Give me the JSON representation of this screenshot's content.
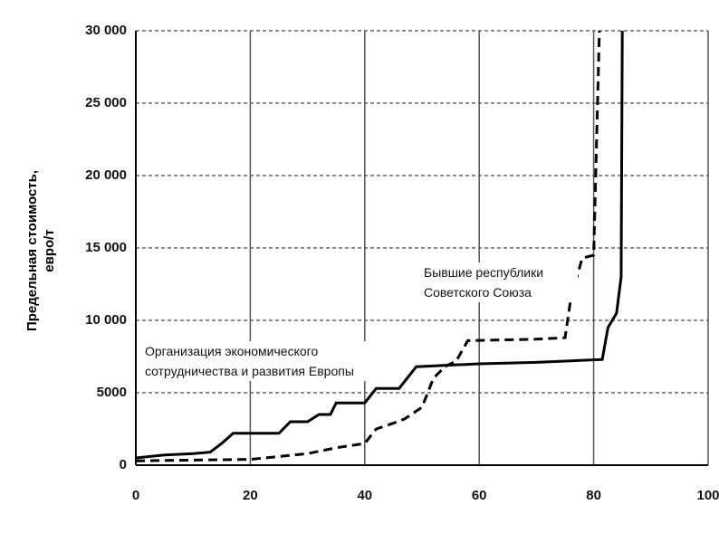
{
  "chart_data": {
    "type": "line",
    "y_label": "Предельная стоимость, евро/т",
    "xlim": [
      0,
      100
    ],
    "xticks": [
      0,
      20,
      40,
      60,
      80,
      100
    ],
    "ylim": [
      0,
      30000
    ],
    "yticks": [
      0,
      {
        "value": 5000,
        "label": "5000"
      },
      {
        "value": 10000,
        "label": "10 000"
      },
      {
        "value": 15000,
        "label": "15 000"
      },
      {
        "value": 20000,
        "label": "20 000"
      },
      {
        "value": 25000,
        "label": "25 000"
      },
      {
        "value": 30000,
        "label": "30 000"
      }
    ],
    "grid": true,
    "series": [
      {
        "name": "Организация экономического сотрудничества и развития Европы",
        "color": "#000000",
        "line_style": "solid",
        "x": [
          0,
          5,
          10,
          13,
          15,
          17,
          25,
          27,
          30,
          32,
          34,
          35,
          40,
          42,
          46,
          49,
          60,
          70,
          81.5,
          82.5,
          84,
          84.8,
          85
        ],
        "values": [
          500,
          700,
          800,
          900,
          1500,
          2200,
          2200,
          3000,
          3000,
          3500,
          3500,
          4300,
          4300,
          5300,
          5300,
          6800,
          7000,
          7100,
          7300,
          9500,
          10500,
          13000,
          30000
        ]
      },
      {
        "name": "Бывшие республики Советского Союза",
        "color": "#000000",
        "line_style": "dashed",
        "x": [
          0,
          10,
          20,
          25,
          30,
          35,
          40,
          42,
          45,
          47,
          50,
          52,
          54,
          56,
          58,
          70,
          75,
          76,
          78,
          80,
          81
        ],
        "values": [
          300,
          350,
          400,
          600,
          800,
          1200,
          1500,
          2500,
          2900,
          3200,
          4000,
          6000,
          6800,
          7200,
          8600,
          8700,
          8800,
          11500,
          14300,
          14500,
          30000
        ]
      }
    ]
  }
}
